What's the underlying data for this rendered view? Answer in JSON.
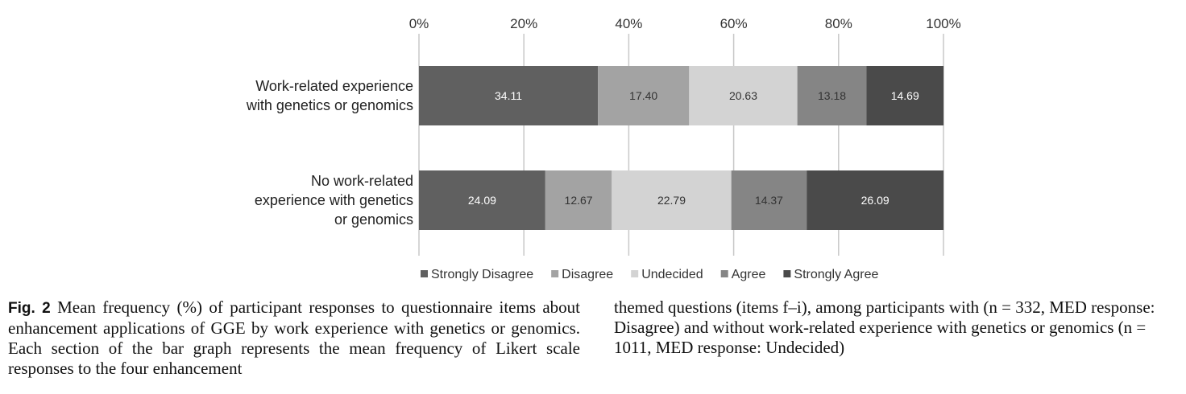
{
  "chart_data": {
    "type": "bar",
    "stacked": true,
    "orientation": "horizontal",
    "categories": [
      [
        "Work-related experience",
        "with genetics or genomics"
      ],
      [
        "No work-related",
        "experience with genetics",
        "or genomics"
      ]
    ],
    "series": [
      {
        "name": "Strongly Disagree",
        "color": "#606060",
        "label_color": "#ffffff",
        "values": [
          34.11,
          24.09
        ]
      },
      {
        "name": "Disagree",
        "color": "#a3a3a3",
        "label_color": "#333333",
        "values": [
          17.4,
          12.67
        ]
      },
      {
        "name": "Undecided",
        "color": "#d3d3d3",
        "label_color": "#333333",
        "values": [
          20.63,
          22.79
        ]
      },
      {
        "name": "Agree",
        "color": "#858585",
        "label_color": "#333333",
        "values": [
          13.18,
          14.37
        ]
      },
      {
        "name": "Strongly Agree",
        "color": "#4a4a4a",
        "label_color": "#ffffff",
        "values": [
          14.69,
          26.09
        ]
      }
    ],
    "value_labels": [
      [
        "34.11",
        "17.40",
        "20.63",
        "13.18",
        "14.69"
      ],
      [
        "24.09",
        "12.67",
        "22.79",
        "14.37",
        "26.09"
      ]
    ],
    "xlim": [
      0,
      100
    ],
    "xticks": [
      0,
      20,
      40,
      60,
      80,
      100
    ],
    "xtick_labels": [
      "0%",
      "20%",
      "40%",
      "60%",
      "80%",
      "100%"
    ],
    "grid": true,
    "legend_position": "bottom"
  },
  "caption": {
    "label": "Fig. 2",
    "left_text": "Mean frequency (%) of participant responses to questionnaire items about enhancement applications of GGE by work experience with genetics or genomics. Each section of the bar graph represents the mean frequency of Likert scale responses to the four enhancement",
    "right_text": "themed questions (items f–i), among participants with (n = 332, MED response: Disagree) and without work-related experience with genetics or genomics (n = 1011, MED response: Undecided)"
  }
}
